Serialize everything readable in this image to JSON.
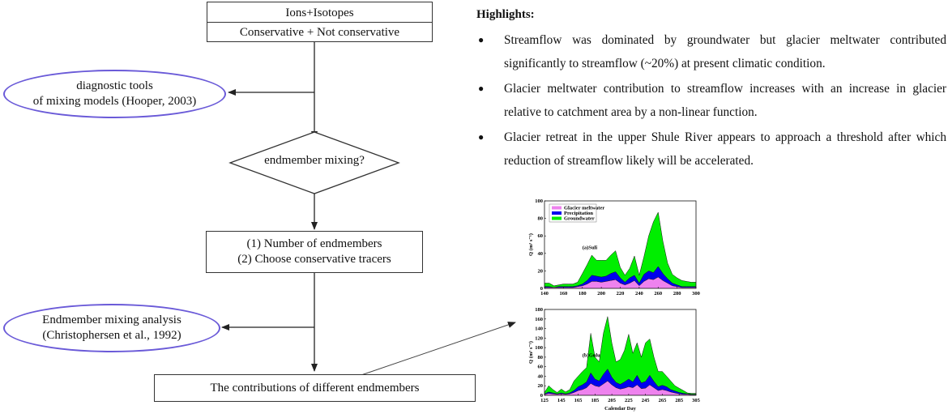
{
  "flowchart": {
    "top_box": {
      "line1": "Ions+Isotopes",
      "line2": "Conservative + Not conservative"
    },
    "ellipse_1": {
      "line1": "diagnostic tools",
      "line2": "of mixing models (Hooper, 2003)"
    },
    "decision": "endmember mixing?",
    "middle_box": {
      "line1": "(1) Number of endmembers",
      "line2": "(2) Choose conservative tracers"
    },
    "ellipse_2": {
      "line1": "Endmember mixing analysis",
      "line2": "(Christophersen et al., 1992)"
    },
    "bottom_box": "The contributions of different endmembers"
  },
  "highlights": {
    "title": "Highlights:",
    "items": [
      "Streamflow was dominated by groundwater but glacier meltwater contributed significantly to streamflow (~20%) at present climatic condition.",
      "Glacier meltwater contribution to streamflow increases with an increase in glacier relative to catchment area by a non-linear function.",
      "Glacier retreat in the upper Shule River appears to approach a threshold after which reduction of streamflow likely will be accelerated."
    ]
  },
  "colors": {
    "glacier": "#ee82ee",
    "precipitation": "#0000ee",
    "groundwater": "#00ee00",
    "ellipse_border": "#6a5ad8"
  },
  "chart_data": [
    {
      "type": "area",
      "stacked": true,
      "title": "(a)Suli",
      "ylabel": "Q (m³ s⁻¹)",
      "xlabel": "",
      "xlim": [
        140,
        300
      ],
      "ylim": [
        0,
        100
      ],
      "xticks": [
        140,
        160,
        180,
        200,
        220,
        240,
        260,
        280,
        300
      ],
      "yticks": [
        0,
        20,
        40,
        60,
        80,
        100
      ],
      "legend": "top-left",
      "x": [
        140,
        145,
        150,
        155,
        160,
        165,
        170,
        175,
        180,
        185,
        190,
        195,
        200,
        205,
        210,
        215,
        220,
        225,
        230,
        235,
        240,
        245,
        250,
        255,
        260,
        265,
        270,
        275,
        280,
        285,
        290,
        295,
        300
      ],
      "series": [
        {
          "name": "Glacier meltwater",
          "values": [
            1,
            1,
            1,
            1,
            1,
            1,
            1,
            2,
            3,
            5,
            8,
            8,
            7,
            8,
            9,
            10,
            6,
            4,
            6,
            9,
            3,
            8,
            11,
            10,
            13,
            9,
            6,
            3,
            2,
            1,
            1,
            1,
            1
          ]
        },
        {
          "name": "Precipitation",
          "values": [
            1,
            1,
            0,
            1,
            1,
            1,
            1,
            1,
            2,
            4,
            7,
            6,
            6,
            6,
            8,
            9,
            6,
            3,
            6,
            6,
            3,
            8,
            9,
            8,
            12,
            8,
            5,
            3,
            2,
            1,
            1,
            1,
            1
          ]
        },
        {
          "name": "Groundwater",
          "values": [
            4,
            4,
            2,
            2,
            3,
            3,
            3,
            4,
            12,
            18,
            23,
            18,
            19,
            18,
            21,
            24,
            12,
            8,
            11,
            22,
            9,
            20,
            40,
            58,
            62,
            37,
            18,
            10,
            8,
            7,
            6,
            5,
            5
          ]
        }
      ]
    },
    {
      "type": "area",
      "stacked": true,
      "title": "(b)Gulu",
      "ylabel": "Q (m³ s⁻¹)",
      "xlabel": "Calendar Day",
      "xlim": [
        125,
        305
      ],
      "ylim": [
        0,
        180
      ],
      "xticks": [
        125,
        145,
        165,
        185,
        205,
        225,
        245,
        265,
        285,
        305
      ],
      "yticks": [
        0,
        20,
        40,
        60,
        80,
        100,
        120,
        140,
        160,
        180
      ],
      "legend": "",
      "x": [
        125,
        130,
        135,
        140,
        145,
        150,
        155,
        160,
        165,
        170,
        175,
        180,
        185,
        190,
        195,
        200,
        205,
        210,
        215,
        220,
        225,
        230,
        235,
        240,
        245,
        250,
        255,
        260,
        265,
        270,
        275,
        280,
        285,
        290,
        295,
        300,
        305
      ],
      "series": [
        {
          "name": "Glacier meltwater",
          "values": [
            2,
            4,
            3,
            2,
            3,
            2,
            3,
            6,
            10,
            12,
            16,
            25,
            20,
            18,
            24,
            30,
            22,
            16,
            13,
            15,
            18,
            16,
            22,
            14,
            15,
            22,
            16,
            10,
            12,
            10,
            7,
            5,
            3,
            2,
            2,
            1,
            1
          ]
        },
        {
          "name": "Precipitation",
          "values": [
            1,
            3,
            2,
            1,
            2,
            1,
            2,
            4,
            8,
            10,
            12,
            22,
            14,
            12,
            20,
            25,
            16,
            11,
            10,
            13,
            16,
            12,
            20,
            12,
            14,
            20,
            13,
            8,
            9,
            8,
            5,
            4,
            3,
            2,
            1,
            1,
            1
          ]
        },
        {
          "name": "Groundwater",
          "values": [
            3,
            13,
            7,
            3,
            8,
            4,
            7,
            20,
            22,
            28,
            30,
            83,
            46,
            40,
            86,
            110,
            72,
            43,
            52,
            66,
            94,
            60,
            68,
            54,
            81,
            76,
            51,
            32,
            29,
            22,
            18,
            11,
            9,
            6,
            2,
            2,
            2
          ]
        }
      ]
    }
  ]
}
